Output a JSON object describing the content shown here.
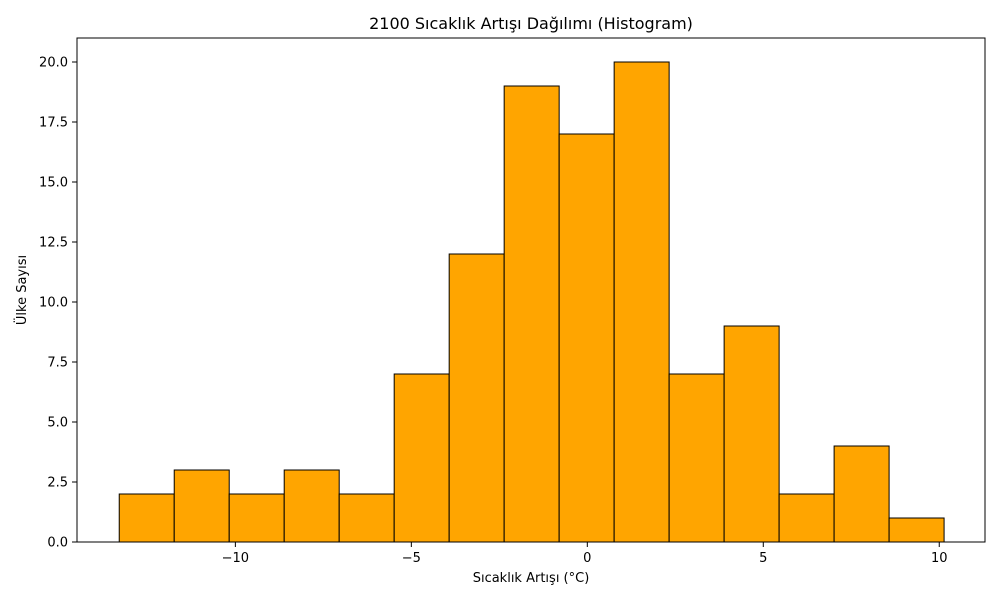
{
  "chart_data": {
    "type": "histogram",
    "title": "2100 Sıcaklık Artışı Dağılımı (Histogram)",
    "xlabel": "Sıcaklık Artışı (°C)",
    "ylabel": "Ülke Sayısı",
    "bar_color": "#FFA500",
    "edge_color": "#000000",
    "xlim": [
      -14.5,
      11.3
    ],
    "ylim": [
      0,
      21
    ],
    "bin_start": -13.3,
    "bin_width": 1.5625,
    "counts": [
      2,
      3,
      2,
      3,
      2,
      7,
      12,
      19,
      17,
      20,
      7,
      9,
      2,
      4,
      1
    ],
    "x_ticks": [
      -10,
      -5,
      0,
      5,
      10
    ],
    "x_tick_labels": [
      "−10",
      "−5",
      "0",
      "5",
      "10"
    ],
    "y_ticks": [
      0,
      2.5,
      5,
      7.5,
      10,
      12.5,
      15,
      17.5,
      20
    ],
    "y_tick_labels": [
      "0.0",
      "2.5",
      "5.0",
      "7.5",
      "10.0",
      "12.5",
      "15.0",
      "17.5",
      "20.0"
    ],
    "grid": false,
    "legend": false
  }
}
